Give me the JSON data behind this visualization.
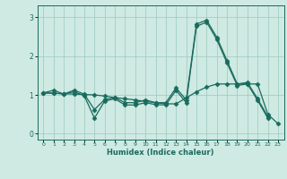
{
  "title": "",
  "xlabel": "Humidex (Indice chaleur)",
  "background_color": "#ceeae2",
  "line_color": "#1a6b5e",
  "grid_color": "#9dc8bf",
  "x": [
    0,
    1,
    2,
    3,
    4,
    5,
    6,
    7,
    8,
    9,
    10,
    11,
    12,
    13,
    14,
    15,
    16,
    17,
    18,
    19,
    20,
    21,
    22,
    23
  ],
  "line1": [
    1.05,
    1.12,
    1.02,
    1.12,
    1.02,
    0.62,
    0.88,
    0.93,
    0.8,
    0.8,
    0.87,
    0.8,
    0.8,
    1.18,
    0.87,
    2.82,
    2.92,
    2.48,
    1.88,
    1.28,
    1.32,
    0.9,
    0.44,
    null
  ],
  "line2": [
    1.05,
    1.05,
    1.02,
    1.08,
    0.98,
    0.4,
    0.84,
    0.9,
    0.74,
    0.74,
    0.8,
    0.75,
    0.74,
    1.12,
    0.8,
    2.76,
    2.87,
    2.42,
    1.82,
    1.24,
    1.28,
    0.86,
    0.4,
    null
  ],
  "line3": [
    1.05,
    1.04,
    1.03,
    1.02,
    1.01,
    1.0,
    0.97,
    0.93,
    0.9,
    0.87,
    0.83,
    0.8,
    0.77,
    0.77,
    0.92,
    1.08,
    1.2,
    1.28,
    1.28,
    1.28,
    1.28,
    1.28,
    0.5,
    0.26
  ],
  "ylim": [
    -0.15,
    3.3
  ],
  "xlim": [
    -0.6,
    23.6
  ],
  "yticks": [
    0,
    1,
    2,
    3
  ],
  "xticks": [
    0,
    1,
    2,
    3,
    4,
    5,
    6,
    7,
    8,
    9,
    10,
    11,
    12,
    13,
    14,
    15,
    16,
    17,
    18,
    19,
    20,
    21,
    22,
    23
  ],
  "markersize": 2.5,
  "linewidth": 0.9
}
